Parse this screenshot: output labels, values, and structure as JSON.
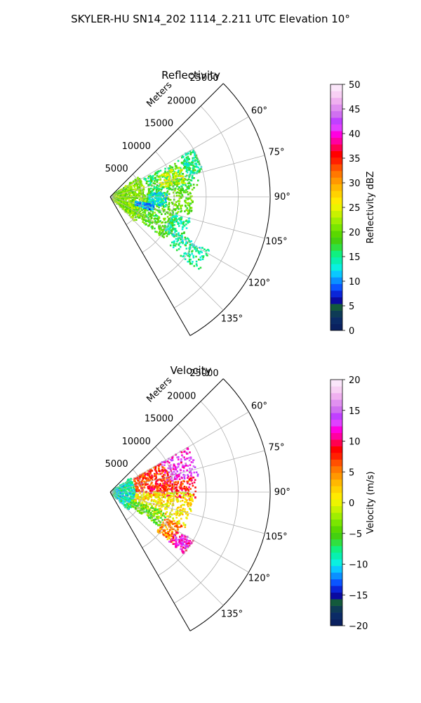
{
  "figure": {
    "title": "SKYLER-HU  SN14_202  1114_2.211 UTC Elevation 10°"
  },
  "chart_data": [
    {
      "type": "heatmap",
      "projection": "polar-sector",
      "title": "Reflectivity",
      "range_label": "Meters",
      "range_limit": [
        0,
        25000
      ],
      "range_ticks": [
        5000,
        10000,
        15000,
        20000,
        25000
      ],
      "range_tick_labels": [
        "5000",
        "10000",
        "15000",
        "20000",
        "25000"
      ],
      "azimuth_limit_deg": [
        45,
        150
      ],
      "azimuth_ticks_deg": [
        60,
        75,
        90,
        105,
        120,
        135
      ],
      "azimuth_tick_labels": [
        "60°",
        "75°",
        "90°",
        "105°",
        "120°",
        "135°"
      ],
      "grid": true,
      "colorbar": {
        "label": "Reflectivity dBZ",
        "vmin": 0,
        "vmax": 50,
        "ticks": [
          0,
          5,
          10,
          15,
          20,
          25,
          30,
          35,
          40,
          45,
          50
        ],
        "tick_labels": [
          "0",
          "5",
          "10",
          "15",
          "20",
          "25",
          "30",
          "35",
          "40",
          "45",
          "50"
        ],
        "colors": [
          "#0a2160",
          "#0b2b66",
          "#0e3b56",
          "#135a3c",
          "#0a0aa0",
          "#0a25d8",
          "#0a55ff",
          "#0a90ff",
          "#0ac8ff",
          "#0af0e0",
          "#08f0b0",
          "#10f080",
          "#30e040",
          "#44d010",
          "#5ad800",
          "#7ae600",
          "#a0ee00",
          "#c8f200",
          "#ecf400",
          "#ffea00",
          "#ffd200",
          "#ffb800",
          "#ff9800",
          "#ff7800",
          "#ff5000",
          "#ff2000",
          "#ff0000",
          "#ff0050",
          "#ff00a0",
          "#ff00e0",
          "#e040ff",
          "#c040ff",
          "#d070f0",
          "#e090f0",
          "#f0b0f0",
          "#f8d0f4",
          "#fbe6fa"
        ]
      },
      "field_regions": [
        {
          "az": [
            62,
            84
          ],
          "r": [
            6000,
            14000
          ],
          "value": 17
        },
        {
          "az": [
            66,
            80
          ],
          "r": [
            8000,
            12000
          ],
          "value": 24
        },
        {
          "az": [
            84,
            103
          ],
          "r": [
            5000,
            13000
          ],
          "value": 20
        },
        {
          "az": [
            103,
            128
          ],
          "r": [
            2500,
            11000
          ],
          "value": 19
        },
        {
          "az": [
            55,
            135
          ],
          "r": [
            500,
            5500
          ],
          "value": 21
        },
        {
          "az": [
            85,
            100
          ],
          "r": [
            6000,
            9000
          ],
          "value": 13
        },
        {
          "az": [
            100,
            108
          ],
          "r": [
            4000,
            7000
          ],
          "value": 11
        },
        {
          "az": [
            60,
            75
          ],
          "r": [
            12500,
            15000
          ],
          "value": 15
        },
        {
          "az": [
            105,
            122
          ],
          "r": [
            10000,
            13000
          ],
          "value": 15
        },
        {
          "az": [
            118,
            130
          ],
          "r": [
            12000,
            18000
          ],
          "value": 15
        }
      ]
    },
    {
      "type": "heatmap",
      "projection": "polar-sector",
      "title": "Velocity",
      "range_label": "Meters",
      "range_limit": [
        0,
        25000
      ],
      "range_ticks": [
        5000,
        10000,
        15000,
        20000,
        25000
      ],
      "range_tick_labels": [
        "5000",
        "10000",
        "15000",
        "20000",
        "25000"
      ],
      "azimuth_limit_deg": [
        45,
        150
      ],
      "azimuth_ticks_deg": [
        60,
        75,
        90,
        105,
        120,
        135
      ],
      "azimuth_tick_labels": [
        "60°",
        "75°",
        "90°",
        "105°",
        "120°",
        "135°"
      ],
      "grid": true,
      "colorbar": {
        "label": "Velocity (m/s)",
        "vmin": -20,
        "vmax": 20,
        "ticks": [
          -20,
          -15,
          -10,
          -5,
          0,
          5,
          10,
          15,
          20
        ],
        "tick_labels": [
          "−20",
          "−15",
          "−10",
          "−5",
          "0",
          "5",
          "10",
          "15",
          "20"
        ],
        "colors": [
          "#0a2160",
          "#0b2b66",
          "#0e3b56",
          "#135a3c",
          "#0a0aa0",
          "#0a25d8",
          "#0a55ff",
          "#0a90ff",
          "#0ac8ff",
          "#0af0e0",
          "#08f0b0",
          "#10f080",
          "#30e040",
          "#44d010",
          "#5ad800",
          "#7ae600",
          "#a0ee00",
          "#c8f200",
          "#ecf400",
          "#ffea00",
          "#ffd200",
          "#ffb800",
          "#ff9800",
          "#ff7800",
          "#ff5000",
          "#ff2000",
          "#ff0000",
          "#ff0050",
          "#ff00a0",
          "#ff00e0",
          "#e040ff",
          "#c040ff",
          "#d070f0",
          "#e090f0",
          "#f0b0f0",
          "#f8d0f4",
          "#fbe6fa"
        ]
      },
      "field_regions": [
        {
          "az": [
            55,
            135
          ],
          "r": [
            500,
            4000
          ],
          "value": -9
        },
        {
          "az": [
            60,
            80
          ],
          "r": [
            9000,
            14000
          ],
          "value": 13
        },
        {
          "az": [
            60,
            90
          ],
          "r": [
            4000,
            9500
          ],
          "value": 7
        },
        {
          "az": [
            80,
            95
          ],
          "r": [
            6000,
            13500
          ],
          "value": 8
        },
        {
          "az": [
            90,
            115
          ],
          "r": [
            4000,
            13000
          ],
          "value": 1
        },
        {
          "az": [
            110,
            125
          ],
          "r": [
            3500,
            9500
          ],
          "value": -4
        },
        {
          "az": [
            115,
            130
          ],
          "r": [
            9500,
            12500
          ],
          "value": 5
        },
        {
          "az": [
            120,
            130
          ],
          "r": [
            12000,
            15000
          ],
          "value": 12
        }
      ]
    }
  ]
}
